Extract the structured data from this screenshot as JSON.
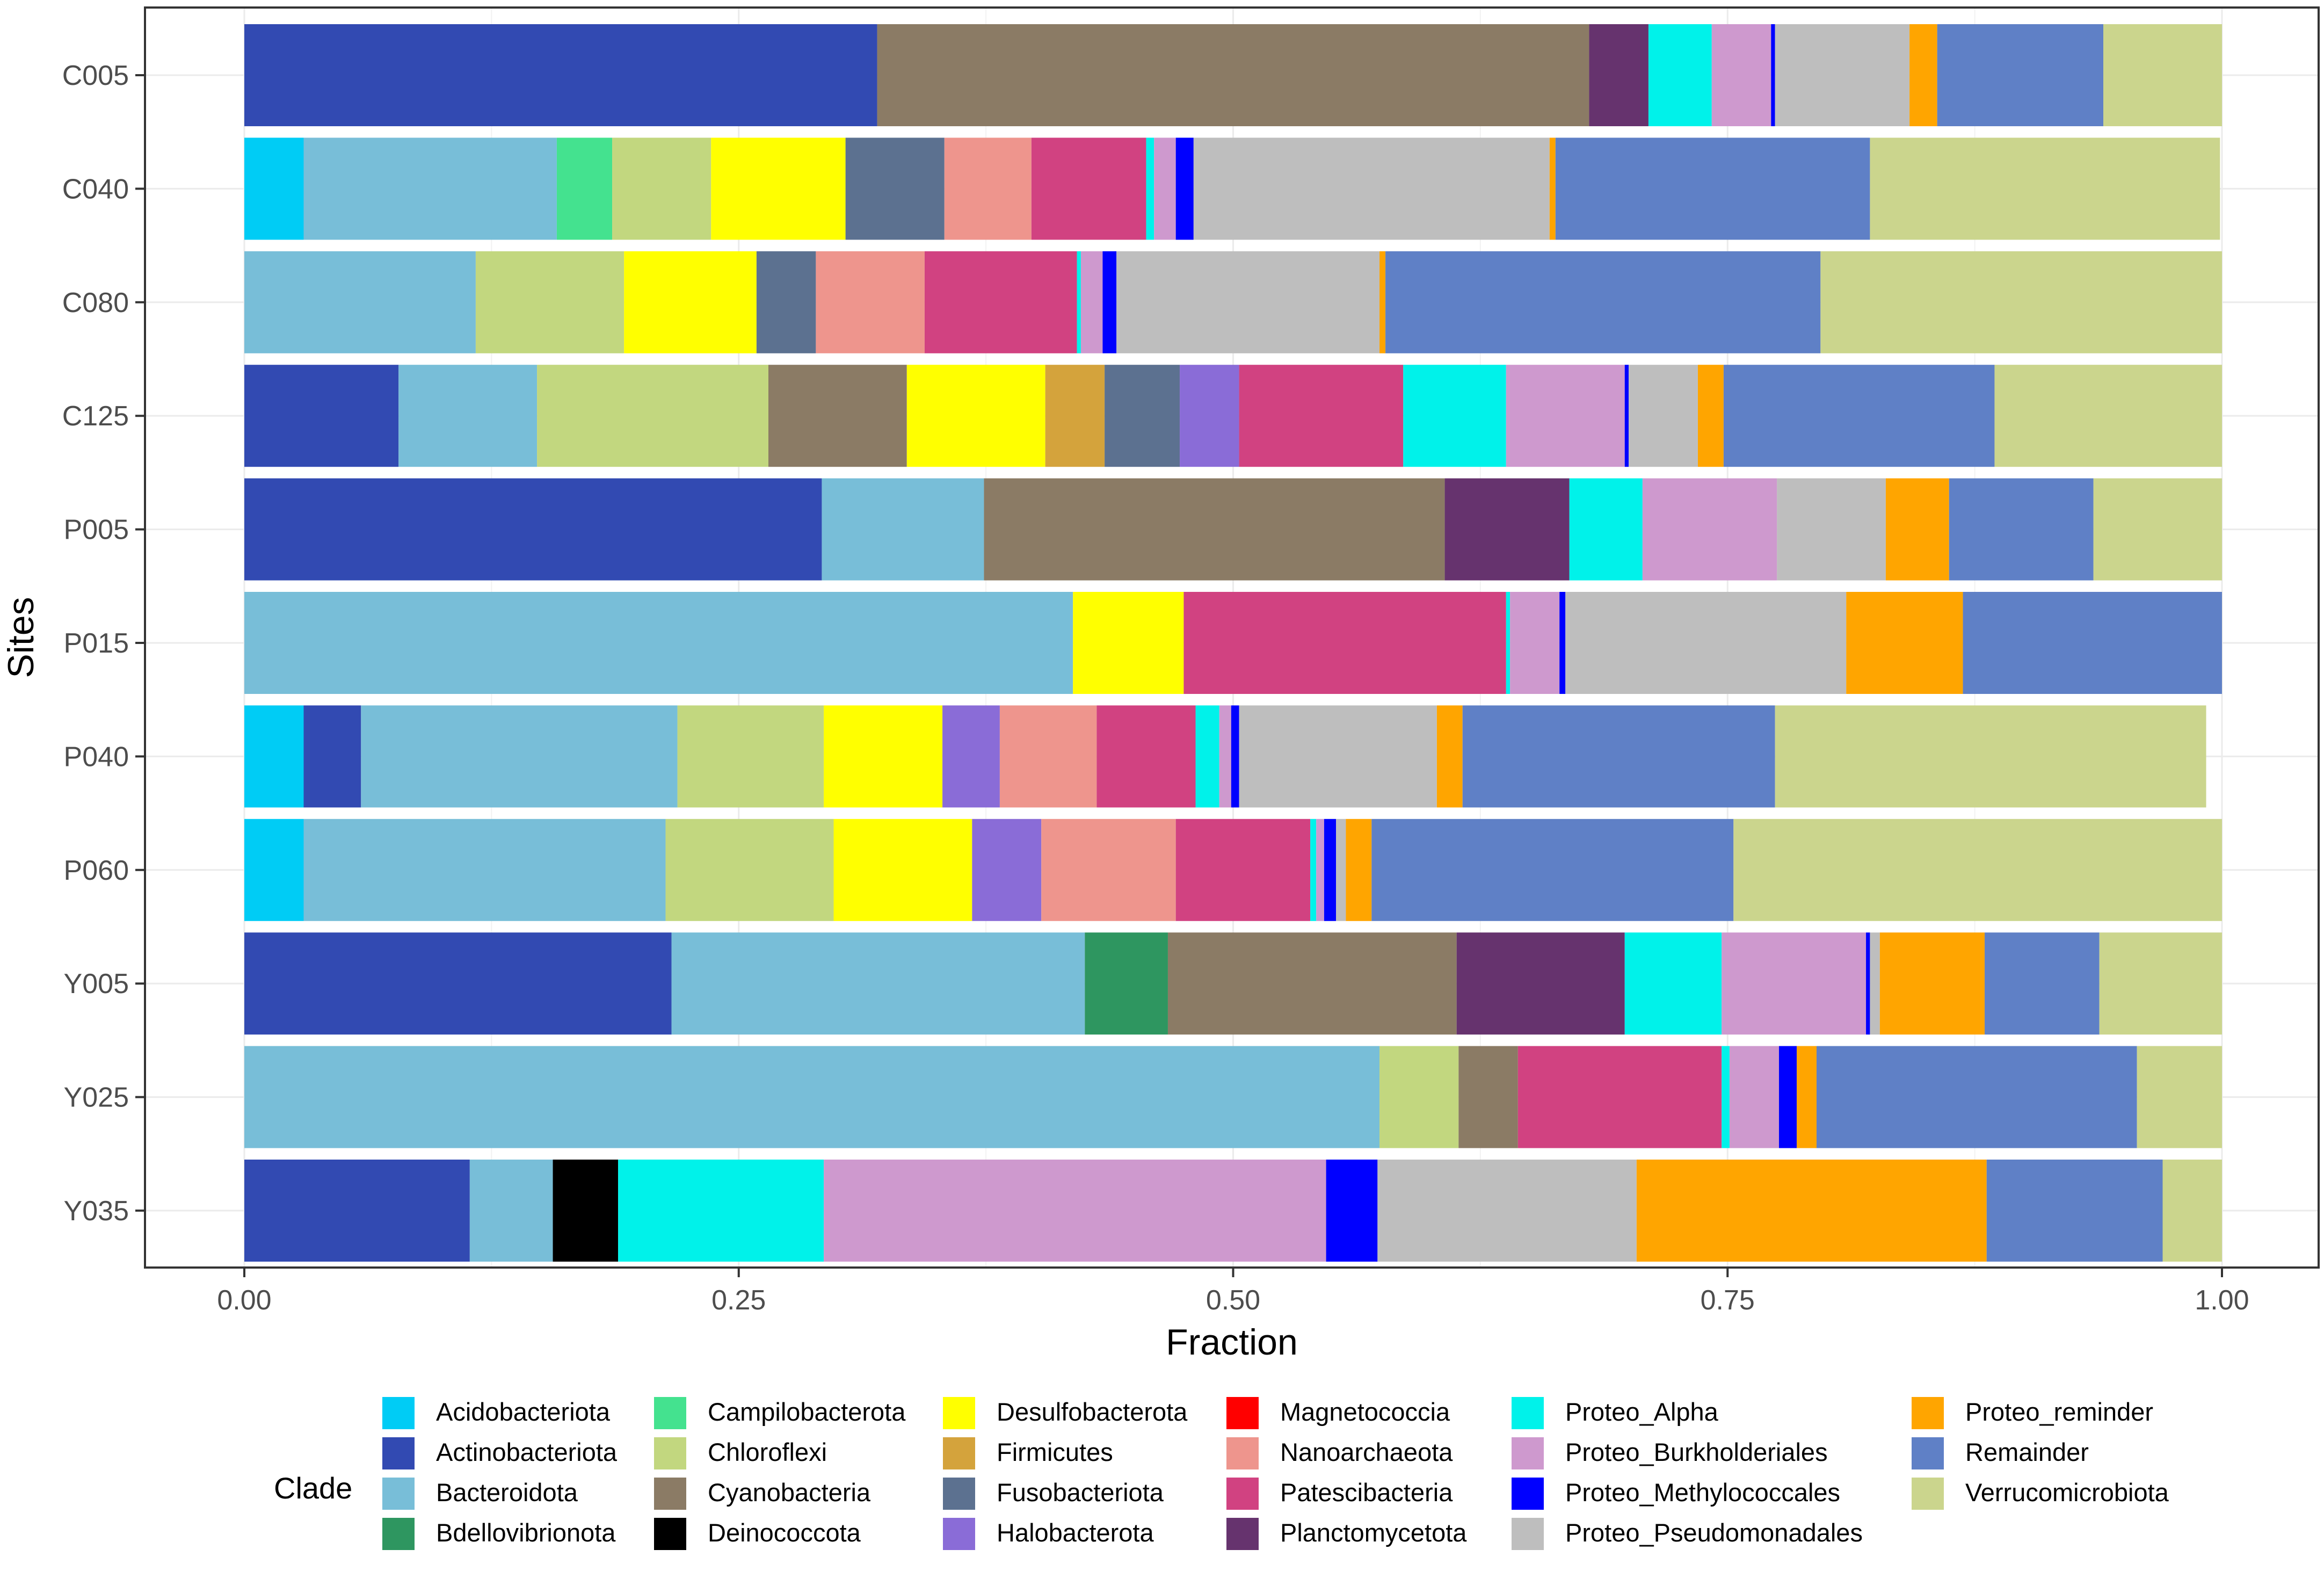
{
  "chart_data": {
    "type": "bar",
    "orientation": "horizontal",
    "stacked": true,
    "title": "",
    "xlabel": "Fraction",
    "ylabel": "Sites",
    "xlim": [
      0,
      1
    ],
    "x_ticks": [
      0,
      0.25,
      0.5,
      0.75,
      1
    ],
    "x_tick_labels": [
      "0.00",
      "0.25",
      "0.50",
      "0.75",
      "1.00"
    ],
    "grid": true,
    "legend_title": "Clade",
    "legend_position": "bottom",
    "clades": [
      {
        "name": "Acidobacteriota",
        "color": "#00CCF5"
      },
      {
        "name": "Actinobacteriota",
        "color": "#324AB2"
      },
      {
        "name": "Bacteroidota",
        "color": "#78BED8"
      },
      {
        "name": "Bdellovibrionota",
        "color": "#2E9660"
      },
      {
        "name": "Campilobacterota",
        "color": "#44E28F"
      },
      {
        "name": "Chloroflexi",
        "color": "#C2D77F"
      },
      {
        "name": "Cyanobacteria",
        "color": "#8B7B65"
      },
      {
        "name": "Deinococcota",
        "color": "#000000"
      },
      {
        "name": "Desulfobacterota",
        "color": "#FFFF00"
      },
      {
        "name": "Firmicutes",
        "color": "#D4A33C"
      },
      {
        "name": "Fusobacteriota",
        "color": "#5C7190"
      },
      {
        "name": "Halobacterota",
        "color": "#8A6CD7"
      },
      {
        "name": "Magnetococcia",
        "color": "#FF0000"
      },
      {
        "name": "Nanoarchaeota",
        "color": "#EE958D"
      },
      {
        "name": "Patescibacteria",
        "color": "#D14281"
      },
      {
        "name": "Planctomycetota",
        "color": "#66336E"
      },
      {
        "name": "Proteo_Alpha",
        "color": "#00F2EA"
      },
      {
        "name": "Proteo_Burkholderiales",
        "color": "#CE99CE"
      },
      {
        "name": "Proteo_Methylococcales",
        "color": "#0000FF"
      },
      {
        "name": "Proteo_Pseudomonadales",
        "color": "#BEBEBE"
      },
      {
        "name": "Proteo_reminder",
        "color": "#FFA500"
      },
      {
        "name": "Remainder",
        "color": "#5F80C6"
      },
      {
        "name": "Verrucomicrobiota",
        "color": "#CBD58D"
      }
    ],
    "categories": [
      "C005",
      "C040",
      "C080",
      "C125",
      "P005",
      "P015",
      "P040",
      "P060",
      "Y005",
      "Y025",
      "Y035"
    ],
    "bars": [
      {
        "site": "C005",
        "segments": [
          {
            "clade": "Actinobacteriota",
            "value": 0.32
          },
          {
            "clade": "Cyanobacteria",
            "value": 0.36
          },
          {
            "clade": "Planctomycetota",
            "value": 0.03
          },
          {
            "clade": "Proteo_Alpha",
            "value": 0.032
          },
          {
            "clade": "Proteo_Burkholderiales",
            "value": 0.03
          },
          {
            "clade": "Proteo_Methylococcales",
            "value": 0.002
          },
          {
            "clade": "Proteo_Pseudomonadales",
            "value": 0.068
          },
          {
            "clade": "Proteo_reminder",
            "value": 0.014
          },
          {
            "clade": "Remainder",
            "value": 0.084
          },
          {
            "clade": "Verrucomicrobiota",
            "value": 0.06
          }
        ]
      },
      {
        "site": "C040",
        "segments": [
          {
            "clade": "Acidobacteriota",
            "value": 0.03
          },
          {
            "clade": "Bacteroidota",
            "value": 0.128
          },
          {
            "clade": "Campilobacterota",
            "value": 0.028
          },
          {
            "clade": "Chloroflexi",
            "value": 0.05
          },
          {
            "clade": "Desulfobacterota",
            "value": 0.068
          },
          {
            "clade": "Fusobacteriota",
            "value": 0.05
          },
          {
            "clade": "Nanoarchaeota",
            "value": 0.044
          },
          {
            "clade": "Patescibacteria",
            "value": 0.058
          },
          {
            "clade": "Proteo_Alpha",
            "value": 0.004
          },
          {
            "clade": "Proteo_Burkholderiales",
            "value": 0.011
          },
          {
            "clade": "Proteo_Methylococcales",
            "value": 0.009
          },
          {
            "clade": "Proteo_Pseudomonadales",
            "value": 0.18
          },
          {
            "clade": "Proteo_reminder",
            "value": 0.003
          },
          {
            "clade": "Remainder",
            "value": 0.159
          },
          {
            "clade": "Verrucomicrobiota",
            "value": 0.177
          }
        ]
      },
      {
        "site": "C080",
        "segments": [
          {
            "clade": "Bacteroidota",
            "value": 0.117
          },
          {
            "clade": "Chloroflexi",
            "value": 0.075
          },
          {
            "clade": "Desulfobacterota",
            "value": 0.067
          },
          {
            "clade": "Fusobacteriota",
            "value": 0.03
          },
          {
            "clade": "Nanoarchaeota",
            "value": 0.055
          },
          {
            "clade": "Patescibacteria",
            "value": 0.077
          },
          {
            "clade": "Proteo_Alpha",
            "value": 0.002
          },
          {
            "clade": "Proteo_Burkholderiales",
            "value": 0.011
          },
          {
            "clade": "Proteo_Methylococcales",
            "value": 0.007
          },
          {
            "clade": "Proteo_Pseudomonadales",
            "value": 0.133
          },
          {
            "clade": "Proteo_reminder",
            "value": 0.003
          },
          {
            "clade": "Remainder",
            "value": 0.22
          },
          {
            "clade": "Verrucomicrobiota",
            "value": 0.203
          }
        ]
      },
      {
        "site": "C125",
        "segments": [
          {
            "clade": "Actinobacteriota",
            "value": 0.078
          },
          {
            "clade": "Bacteroidota",
            "value": 0.07
          },
          {
            "clade": "Chloroflexi",
            "value": 0.117
          },
          {
            "clade": "Cyanobacteria",
            "value": 0.07
          },
          {
            "clade": "Desulfobacterota",
            "value": 0.07
          },
          {
            "clade": "Firmicutes",
            "value": 0.03
          },
          {
            "clade": "Fusobacteriota",
            "value": 0.038
          },
          {
            "clade": "Halobacterota",
            "value": 0.03
          },
          {
            "clade": "Patescibacteria",
            "value": 0.083
          },
          {
            "clade": "Proteo_Alpha",
            "value": 0.052
          },
          {
            "clade": "Proteo_Burkholderiales",
            "value": 0.06
          },
          {
            "clade": "Proteo_Methylococcales",
            "value": 0.002
          },
          {
            "clade": "Proteo_Pseudomonadales",
            "value": 0.035
          },
          {
            "clade": "Proteo_reminder",
            "value": 0.013
          },
          {
            "clade": "Remainder",
            "value": 0.137
          },
          {
            "clade": "Verrucomicrobiota",
            "value": 0.115
          }
        ]
      },
      {
        "site": "P005",
        "segments": [
          {
            "clade": "Actinobacteriota",
            "value": 0.292
          },
          {
            "clade": "Bacteroidota",
            "value": 0.082
          },
          {
            "clade": "Cyanobacteria",
            "value": 0.233
          },
          {
            "clade": "Planctomycetota",
            "value": 0.063
          },
          {
            "clade": "Proteo_Alpha",
            "value": 0.037
          },
          {
            "clade": "Proteo_Burkholderiales",
            "value": 0.068
          },
          {
            "clade": "Proteo_Pseudomonadales",
            "value": 0.055
          },
          {
            "clade": "Proteo_reminder",
            "value": 0.032
          },
          {
            "clade": "Remainder",
            "value": 0.073
          },
          {
            "clade": "Verrucomicrobiota",
            "value": 0.065
          }
        ]
      },
      {
        "site": "P015",
        "segments": [
          {
            "clade": "Bacteroidota",
            "value": 0.419
          },
          {
            "clade": "Desulfobacterota",
            "value": 0.056
          },
          {
            "clade": "Patescibacteria",
            "value": 0.163
          },
          {
            "clade": "Proteo_Alpha",
            "value": 0.002
          },
          {
            "clade": "Proteo_Burkholderiales",
            "value": 0.025
          },
          {
            "clade": "Proteo_Methylococcales",
            "value": 0.003
          },
          {
            "clade": "Proteo_Pseudomonadales",
            "value": 0.142
          },
          {
            "clade": "Proteo_reminder",
            "value": 0.059
          },
          {
            "clade": "Remainder",
            "value": 0.131
          }
        ]
      },
      {
        "site": "P040",
        "segments": [
          {
            "clade": "Acidobacteriota",
            "value": 0.03
          },
          {
            "clade": "Actinobacteriota",
            "value": 0.029
          },
          {
            "clade": "Bacteroidota",
            "value": 0.16
          },
          {
            "clade": "Chloroflexi",
            "value": 0.074
          },
          {
            "clade": "Desulfobacterota",
            "value": 0.06
          },
          {
            "clade": "Halobacterota",
            "value": 0.029
          },
          {
            "clade": "Nanoarchaeota",
            "value": 0.049
          },
          {
            "clade": "Patescibacteria",
            "value": 0.05
          },
          {
            "clade": "Proteo_Alpha",
            "value": 0.012
          },
          {
            "clade": "Proteo_Burkholderiales",
            "value": 0.006
          },
          {
            "clade": "Proteo_Methylococcales",
            "value": 0.004
          },
          {
            "clade": "Proteo_Pseudomonadales",
            "value": 0.1
          },
          {
            "clade": "Proteo_reminder",
            "value": 0.013
          },
          {
            "clade": "Remainder",
            "value": 0.158
          },
          {
            "clade": "Verrucomicrobiota",
            "value": 0.218
          }
        ]
      },
      {
        "site": "P060",
        "segments": [
          {
            "clade": "Acidobacteriota",
            "value": 0.03
          },
          {
            "clade": "Bacteroidota",
            "value": 0.183
          },
          {
            "clade": "Chloroflexi",
            "value": 0.085
          },
          {
            "clade": "Desulfobacterota",
            "value": 0.07
          },
          {
            "clade": "Halobacterota",
            "value": 0.035
          },
          {
            "clade": "Nanoarchaeota",
            "value": 0.068
          },
          {
            "clade": "Patescibacteria",
            "value": 0.068
          },
          {
            "clade": "Proteo_Alpha",
            "value": 0.003
          },
          {
            "clade": "Proteo_Burkholderiales",
            "value": 0.004
          },
          {
            "clade": "Proteo_Methylococcales",
            "value": 0.006
          },
          {
            "clade": "Proteo_Pseudomonadales",
            "value": 0.005
          },
          {
            "clade": "Proteo_reminder",
            "value": 0.013
          },
          {
            "clade": "Remainder",
            "value": 0.183
          },
          {
            "clade": "Verrucomicrobiota",
            "value": 0.247
          }
        ]
      },
      {
        "site": "Y005",
        "segments": [
          {
            "clade": "Actinobacteriota",
            "value": 0.216
          },
          {
            "clade": "Bacteroidota",
            "value": 0.209
          },
          {
            "clade": "Bdellovibrionota",
            "value": 0.042
          },
          {
            "clade": "Cyanobacteria",
            "value": 0.146
          },
          {
            "clade": "Planctomycetota",
            "value": 0.085
          },
          {
            "clade": "Proteo_Alpha",
            "value": 0.049
          },
          {
            "clade": "Proteo_Burkholderiales",
            "value": 0.073
          },
          {
            "clade": "Proteo_Methylococcales",
            "value": 0.002
          },
          {
            "clade": "Proteo_Pseudomonadales",
            "value": 0.005
          },
          {
            "clade": "Proteo_reminder",
            "value": 0.053
          },
          {
            "clade": "Remainder",
            "value": 0.058
          },
          {
            "clade": "Verrucomicrobiota",
            "value": 0.062
          }
        ]
      },
      {
        "site": "Y025",
        "segments": [
          {
            "clade": "Bacteroidota",
            "value": 0.574
          },
          {
            "clade": "Chloroflexi",
            "value": 0.04
          },
          {
            "clade": "Cyanobacteria",
            "value": 0.03
          },
          {
            "clade": "Patescibacteria",
            "value": 0.103
          },
          {
            "clade": "Proteo_Alpha",
            "value": 0.004
          },
          {
            "clade": "Proteo_Burkholderiales",
            "value": 0.025
          },
          {
            "clade": "Proteo_Methylococcales",
            "value": 0.009
          },
          {
            "clade": "Proteo_reminder",
            "value": 0.01
          },
          {
            "clade": "Remainder",
            "value": 0.162
          },
          {
            "clade": "Verrucomicrobiota",
            "value": 0.043
          }
        ]
      },
      {
        "site": "Y035",
        "segments": [
          {
            "clade": "Actinobacteriota",
            "value": 0.114
          },
          {
            "clade": "Bacteroidota",
            "value": 0.042
          },
          {
            "clade": "Deinococcota",
            "value": 0.033
          },
          {
            "clade": "Proteo_Alpha",
            "value": 0.104
          },
          {
            "clade": "Proteo_Burkholderiales",
            "value": 0.254
          },
          {
            "clade": "Proteo_Methylococcales",
            "value": 0.026
          },
          {
            "clade": "Proteo_Pseudomonadales",
            "value": 0.131
          },
          {
            "clade": "Proteo_reminder",
            "value": 0.177
          },
          {
            "clade": "Remainder",
            "value": 0.089
          },
          {
            "clade": "Verrucomicrobiota",
            "value": 0.03
          }
        ]
      }
    ]
  }
}
